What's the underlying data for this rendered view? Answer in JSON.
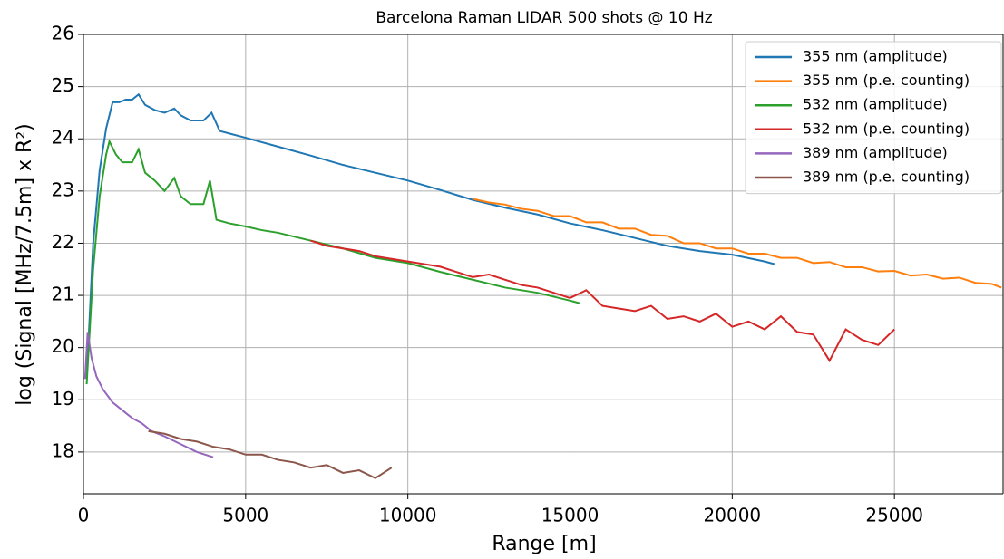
{
  "chart_data": {
    "type": "line",
    "title": "Barcelona Raman LIDAR 500 shots @ 10 Hz",
    "xlabel": "Range [m]",
    "ylabel": "log (Signal [MHz/7.5m] x R²)",
    "xlim": [
      0,
      28350
    ],
    "ylim": [
      17.2,
      26
    ],
    "xticks": [
      0,
      5000,
      10000,
      15000,
      20000,
      25000
    ],
    "yticks": [
      18,
      19,
      20,
      21,
      22,
      23,
      24,
      25,
      26
    ],
    "grid": true,
    "legend": "upper right",
    "series": [
      {
        "name": "355 nm (amplitude)",
        "color": "#1f77b4",
        "x": [
          100,
          300,
          500,
          700,
          900,
          1100,
          1300,
          1500,
          1700,
          1900,
          2200,
          2500,
          2800,
          3000,
          3300,
          3700,
          3950,
          4200,
          5000,
          6000,
          7000,
          8000,
          9000,
          10000,
          11000,
          12000,
          13000,
          14000,
          15000,
          16000,
          17000,
          18000,
          19000,
          20000,
          21000,
          21300
        ],
        "values": [
          19.4,
          22.0,
          23.4,
          24.2,
          24.7,
          24.7,
          24.75,
          24.75,
          24.85,
          24.65,
          24.55,
          24.5,
          24.58,
          24.45,
          24.35,
          24.35,
          24.5,
          24.15,
          24.02,
          23.85,
          23.68,
          23.5,
          23.35,
          23.2,
          23.02,
          22.83,
          22.68,
          22.55,
          22.38,
          22.25,
          22.1,
          21.95,
          21.85,
          21.78,
          21.65,
          21.6
        ]
      },
      {
        "name": "355 nm (p.e. counting)",
        "color": "#ff7f0e",
        "x": [
          12000,
          12500,
          13000,
          13500,
          14000,
          14500,
          15000,
          15500,
          16000,
          16500,
          17000,
          17500,
          18000,
          18500,
          19000,
          19500,
          20000,
          20500,
          21000,
          21500,
          22000,
          22500,
          23000,
          23500,
          24000,
          24500,
          25000,
          25500,
          26000,
          26500,
          27000,
          27500,
          28000,
          28300
        ],
        "values": [
          22.85,
          22.78,
          22.74,
          22.66,
          22.62,
          22.52,
          22.52,
          22.4,
          22.4,
          22.28,
          22.28,
          22.16,
          22.14,
          22.0,
          22.0,
          21.9,
          21.9,
          21.8,
          21.8,
          21.72,
          21.72,
          21.62,
          21.64,
          21.54,
          21.54,
          21.46,
          21.47,
          21.38,
          21.4,
          21.32,
          21.34,
          21.24,
          21.22,
          21.15
        ]
      },
      {
        "name": "532 nm (amplitude)",
        "color": "#2ca02c",
        "x": [
          100,
          300,
          500,
          700,
          800,
          1000,
          1200,
          1500,
          1700,
          1900,
          2200,
          2500,
          2800,
          3000,
          3300,
          3700,
          3900,
          4100,
          4500,
          5000,
          5500,
          6000,
          7000,
          8000,
          9000,
          10000,
          11000,
          12000,
          13000,
          14000,
          15000,
          15300
        ],
        "values": [
          19.3,
          21.5,
          22.9,
          23.7,
          23.95,
          23.7,
          23.55,
          23.55,
          23.8,
          23.35,
          23.2,
          23.0,
          23.25,
          22.9,
          22.75,
          22.75,
          23.2,
          22.45,
          22.38,
          22.32,
          22.25,
          22.2,
          22.05,
          21.9,
          21.72,
          21.62,
          21.45,
          21.3,
          21.15,
          21.05,
          20.9,
          20.85
        ]
      },
      {
        "name": "532 nm (p.e. counting)",
        "color": "#d62728",
        "x": [
          7000,
          7500,
          8000,
          8500,
          9000,
          9500,
          10000,
          10500,
          11000,
          11500,
          12000,
          12500,
          13000,
          13500,
          14000,
          14500,
          15000,
          15500,
          16000,
          16500,
          17000,
          17500,
          18000,
          18500,
          19000,
          19500,
          20000,
          20500,
          21000,
          21500,
          22000,
          22500,
          23000,
          23500,
          24000,
          24500,
          25000
        ],
        "values": [
          22.05,
          21.95,
          21.9,
          21.85,
          21.75,
          21.7,
          21.65,
          21.6,
          21.55,
          21.45,
          21.35,
          21.4,
          21.3,
          21.2,
          21.15,
          21.05,
          20.95,
          21.1,
          20.8,
          20.75,
          20.7,
          20.8,
          20.55,
          20.6,
          20.5,
          20.65,
          20.4,
          20.5,
          20.35,
          20.6,
          20.3,
          20.25,
          19.75,
          20.35,
          20.15,
          20.05,
          20.35
        ]
      },
      {
        "name": "389 nm (amplitude)",
        "color": "#9467bd",
        "x": [
          50,
          130,
          250,
          400,
          600,
          900,
          1200,
          1500,
          1800,
          2100,
          2500,
          3000,
          3500,
          4000
        ],
        "values": [
          19.4,
          20.3,
          19.8,
          19.45,
          19.2,
          18.95,
          18.8,
          18.65,
          18.55,
          18.4,
          18.3,
          18.15,
          18.0,
          17.9
        ]
      },
      {
        "name": "389 nm (p.e. counting)",
        "color": "#8c564b",
        "x": [
          2000,
          2500,
          3000,
          3500,
          4000,
          4500,
          5000,
          5500,
          6000,
          6500,
          7000,
          7500,
          8000,
          8500,
          9000,
          9500
        ],
        "values": [
          18.4,
          18.35,
          18.25,
          18.2,
          18.1,
          18.05,
          17.95,
          17.95,
          17.85,
          17.8,
          17.7,
          17.75,
          17.6,
          17.65,
          17.5,
          17.7
        ]
      }
    ]
  }
}
